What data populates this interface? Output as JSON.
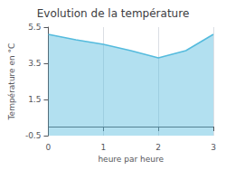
{
  "chart_data": {
    "type": "line",
    "title": "Evolution de la température",
    "xlabel": "heure par heure",
    "ylabel": "Température en °C",
    "x": [
      0,
      0.5,
      1,
      1.5,
      2,
      2.5,
      3
    ],
    "values": [
      5.1,
      4.8,
      4.55,
      4.2,
      3.8,
      4.2,
      5.1
    ],
    "color": "#55bbdd",
    "xlim": [
      0,
      3
    ],
    "xticks": [
      0,
      1,
      2,
      3
    ],
    "ylim": [
      -0.5,
      5.5
    ],
    "yticks": [
      -0.5,
      1.5,
      3.5,
      5.5
    ],
    "grid": "x"
  }
}
